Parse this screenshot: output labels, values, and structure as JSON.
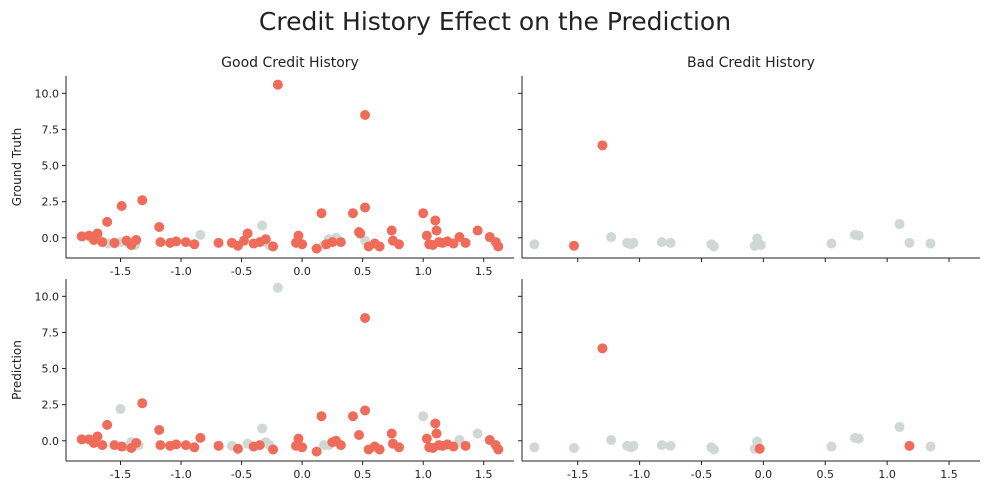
{
  "figure": {
    "title": "Credit History Effect on the Prediction",
    "colors": {
      "primary": "#f06c5a",
      "secondary": "#d0d8d4"
    }
  },
  "chart_data": [
    {
      "type": "scatter",
      "title": "Good Credit History",
      "ylabel": "Ground Truth",
      "xlim": [
        -1.95,
        1.75
      ],
      "ylim": [
        -1.4,
        11.2
      ],
      "xticks": [
        "-1.5",
        "-1.0",
        "-0.5",
        "0.0",
        "0.5",
        "1.0",
        "1.5"
      ],
      "yticks": [
        "0.0",
        "2.5",
        "5.0",
        "7.5",
        "10.0"
      ],
      "points": [
        [
          -1.81,
          0.08,
          "s"
        ],
        [
          -1.76,
          0.08,
          "s"
        ],
        [
          -1.68,
          -0.1,
          "s"
        ],
        [
          -1.6,
          -0.4,
          "s"
        ],
        [
          -1.55,
          -0.4,
          "s"
        ],
        [
          -1.5,
          -0.3,
          "s"
        ],
        [
          -1.43,
          -0.4,
          "s"
        ],
        [
          -1.38,
          -0.5,
          "s"
        ],
        [
          -0.27,
          -0.5,
          "s"
        ],
        [
          -0.05,
          -0.3,
          "s"
        ],
        [
          -0.84,
          0.2,
          "s"
        ],
        [
          -0.33,
          0.85,
          "s"
        ],
        [
          -0.3,
          -0.3,
          "s"
        ],
        [
          0.18,
          -0.5,
          "s"
        ],
        [
          0.22,
          -0.1,
          "s"
        ],
        [
          0.28,
          0.0,
          "s"
        ],
        [
          0.52,
          -0.2,
          "s"
        ],
        [
          -1.82,
          0.1,
          "p"
        ],
        [
          -1.76,
          0.15,
          "p"
        ],
        [
          -1.72,
          -0.15,
          "p"
        ],
        [
          -1.69,
          0.3,
          "p"
        ],
        [
          -1.65,
          -0.3,
          "p"
        ],
        [
          -1.61,
          1.1,
          "p"
        ],
        [
          -1.55,
          -0.35,
          "p"
        ],
        [
          -1.49,
          2.2,
          "p"
        ],
        [
          -1.45,
          -0.2,
          "p"
        ],
        [
          -1.41,
          -0.5,
          "p"
        ],
        [
          -1.37,
          -0.15,
          "p"
        ],
        [
          -1.32,
          2.6,
          "p"
        ],
        [
          -1.18,
          0.75,
          "p"
        ],
        [
          -1.17,
          -0.3,
          "p"
        ],
        [
          -1.09,
          -0.35,
          "p"
        ],
        [
          -1.04,
          -0.25,
          "p"
        ],
        [
          -0.96,
          -0.3,
          "p"
        ],
        [
          -0.89,
          -0.45,
          "p"
        ],
        [
          -0.69,
          -0.35,
          "p"
        ],
        [
          -0.58,
          -0.35,
          "p"
        ],
        [
          -0.53,
          -0.55,
          "p"
        ],
        [
          -0.48,
          -0.2,
          "p"
        ],
        [
          -0.45,
          0.3,
          "p"
        ],
        [
          -0.4,
          -0.4,
          "p"
        ],
        [
          -0.35,
          -0.3,
          "p"
        ],
        [
          -0.3,
          -0.1,
          "p"
        ],
        [
          -0.24,
          -0.6,
          "p"
        ],
        [
          -0.2,
          10.6,
          "p"
        ],
        [
          -0.05,
          -0.35,
          "p"
        ],
        [
          -0.03,
          0.15,
          "p"
        ],
        [
          0.0,
          -0.45,
          "p"
        ],
        [
          0.12,
          -0.75,
          "p"
        ],
        [
          0.16,
          1.7,
          "p"
        ],
        [
          0.2,
          -0.45,
          "p"
        ],
        [
          0.25,
          -0.3,
          "p"
        ],
        [
          0.32,
          -0.3,
          "p"
        ],
        [
          0.42,
          1.7,
          "p"
        ],
        [
          0.47,
          0.4,
          "p"
        ],
        [
          0.48,
          0.3,
          "p"
        ],
        [
          0.52,
          2.1,
          "p"
        ],
        [
          0.52,
          8.5,
          "p"
        ],
        [
          0.55,
          -0.6,
          "p"
        ],
        [
          0.6,
          -0.4,
          "p"
        ],
        [
          0.64,
          -0.6,
          "p"
        ],
        [
          0.74,
          0.5,
          "p"
        ],
        [
          0.75,
          -0.2,
          "p"
        ],
        [
          0.8,
          -0.45,
          "p"
        ],
        [
          1.0,
          1.7,
          "p"
        ],
        [
          1.03,
          0.15,
          "p"
        ],
        [
          1.05,
          -0.45,
          "p"
        ],
        [
          1.08,
          -0.5,
          "p"
        ],
        [
          1.1,
          1.2,
          "p"
        ],
        [
          1.11,
          0.5,
          "p"
        ],
        [
          1.13,
          -0.3,
          "p"
        ],
        [
          1.16,
          -0.35,
          "p"
        ],
        [
          1.2,
          -0.25,
          "p"
        ],
        [
          1.25,
          -0.4,
          "p"
        ],
        [
          1.3,
          0.05,
          "p"
        ],
        [
          1.35,
          -0.35,
          "p"
        ],
        [
          1.45,
          0.5,
          "p"
        ],
        [
          1.55,
          0.05,
          "p"
        ],
        [
          1.6,
          -0.3,
          "p"
        ],
        [
          1.62,
          -0.6,
          "p"
        ]
      ]
    },
    {
      "type": "scatter",
      "title": "Bad Credit History",
      "ylabel": "",
      "xlim": [
        -1.95,
        1.75
      ],
      "ylim": [
        -1.4,
        11.2
      ],
      "xticks": [],
      "yticks": [
        "",
        "",
        "",
        "",
        ""
      ],
      "points": [
        [
          -1.85,
          -0.45,
          "s"
        ],
        [
          -1.23,
          0.05,
          "s"
        ],
        [
          -1.1,
          -0.35,
          "s"
        ],
        [
          -1.07,
          -0.45,
          "s"
        ],
        [
          -1.05,
          -0.35,
          "s"
        ],
        [
          -0.82,
          -0.3,
          "s"
        ],
        [
          -0.75,
          -0.35,
          "s"
        ],
        [
          -0.42,
          -0.45,
          "s"
        ],
        [
          -0.4,
          -0.6,
          "s"
        ],
        [
          -0.07,
          -0.55,
          "s"
        ],
        [
          -0.05,
          -0.05,
          "s"
        ],
        [
          -0.02,
          -0.5,
          "s"
        ],
        [
          0.55,
          -0.4,
          "s"
        ],
        [
          0.74,
          0.2,
          "s"
        ],
        [
          0.77,
          0.15,
          "s"
        ],
        [
          1.1,
          0.95,
          "s"
        ],
        [
          1.18,
          -0.35,
          "s"
        ],
        [
          1.35,
          -0.4,
          "s"
        ],
        [
          -1.53,
          -0.55,
          "p"
        ],
        [
          -1.3,
          6.4,
          "p"
        ]
      ]
    },
    {
      "type": "scatter",
      "title": "",
      "ylabel": "Prediction",
      "xlim": [
        -1.95,
        1.75
      ],
      "ylim": [
        -1.4,
        11.2
      ],
      "xticks": [
        "-1.5",
        "-1.0",
        "-0.5",
        "0.0",
        "0.5",
        "1.0",
        "1.5"
      ],
      "yticks": [
        "0.0",
        "2.5",
        "5.0",
        "7.5",
        "10.0"
      ],
      "points": [
        [
          -1.5,
          2.2,
          "s"
        ],
        [
          -1.45,
          -0.4,
          "s"
        ],
        [
          -1.35,
          -0.3,
          "s"
        ],
        [
          -1.41,
          -0.1,
          "s"
        ],
        [
          -0.33,
          0.85,
          "s"
        ],
        [
          -0.3,
          -0.1,
          "s"
        ],
        [
          -0.27,
          -0.3,
          "s"
        ],
        [
          -0.2,
          10.6,
          "s"
        ],
        [
          0.18,
          -0.3,
          "s"
        ],
        [
          0.22,
          -0.3,
          "s"
        ],
        [
          1.0,
          1.7,
          "s"
        ],
        [
          1.3,
          0.05,
          "s"
        ],
        [
          1.45,
          0.5,
          "s"
        ],
        [
          -0.45,
          -0.2,
          "s"
        ],
        [
          -0.58,
          -0.35,
          "s"
        ],
        [
          -1.82,
          0.1,
          "p"
        ],
        [
          -1.76,
          0.1,
          "p"
        ],
        [
          -1.72,
          -0.15,
          "p"
        ],
        [
          -1.69,
          0.3,
          "p"
        ],
        [
          -1.65,
          -0.3,
          "p"
        ],
        [
          -1.61,
          1.1,
          "p"
        ],
        [
          -1.55,
          -0.3,
          "p"
        ],
        [
          -1.49,
          -0.4,
          "p"
        ],
        [
          -1.41,
          -0.5,
          "p"
        ],
        [
          -1.37,
          -0.15,
          "p"
        ],
        [
          -1.32,
          2.6,
          "p"
        ],
        [
          -1.18,
          0.75,
          "p"
        ],
        [
          -1.17,
          -0.3,
          "p"
        ],
        [
          -1.09,
          -0.35,
          "p"
        ],
        [
          -1.04,
          -0.25,
          "p"
        ],
        [
          -0.96,
          -0.3,
          "p"
        ],
        [
          -0.84,
          0.2,
          "p"
        ],
        [
          -0.89,
          -0.45,
          "p"
        ],
        [
          -0.69,
          -0.35,
          "p"
        ],
        [
          -0.53,
          -0.55,
          "p"
        ],
        [
          -0.4,
          -0.4,
          "p"
        ],
        [
          -0.35,
          -0.3,
          "p"
        ],
        [
          -0.24,
          -0.6,
          "p"
        ],
        [
          -0.05,
          -0.35,
          "p"
        ],
        [
          -0.03,
          0.15,
          "p"
        ],
        [
          0.0,
          -0.45,
          "p"
        ],
        [
          0.12,
          -0.75,
          "p"
        ],
        [
          0.16,
          1.7,
          "p"
        ],
        [
          0.25,
          -0.1,
          "p"
        ],
        [
          0.28,
          0.0,
          "p"
        ],
        [
          0.32,
          -0.3,
          "p"
        ],
        [
          0.42,
          1.7,
          "p"
        ],
        [
          0.47,
          0.4,
          "p"
        ],
        [
          0.52,
          2.1,
          "p"
        ],
        [
          0.52,
          8.5,
          "p"
        ],
        [
          0.55,
          -0.6,
          "p"
        ],
        [
          0.6,
          -0.4,
          "p"
        ],
        [
          0.64,
          -0.6,
          "p"
        ],
        [
          0.74,
          0.5,
          "p"
        ],
        [
          0.75,
          -0.2,
          "p"
        ],
        [
          0.8,
          -0.45,
          "p"
        ],
        [
          1.03,
          0.15,
          "p"
        ],
        [
          1.05,
          -0.45,
          "p"
        ],
        [
          1.08,
          -0.5,
          "p"
        ],
        [
          1.1,
          1.2,
          "p"
        ],
        [
          1.11,
          0.5,
          "p"
        ],
        [
          1.13,
          -0.3,
          "p"
        ],
        [
          1.16,
          -0.35,
          "p"
        ],
        [
          1.2,
          -0.25,
          "p"
        ],
        [
          1.25,
          -0.4,
          "p"
        ],
        [
          1.35,
          -0.35,
          "p"
        ],
        [
          1.55,
          0.05,
          "p"
        ],
        [
          1.6,
          -0.3,
          "p"
        ],
        [
          1.62,
          -0.6,
          "p"
        ]
      ]
    },
    {
      "type": "scatter",
      "title": "",
      "ylabel": "",
      "xlim": [
        -1.95,
        1.75
      ],
      "ylim": [
        -1.4,
        11.2
      ],
      "xticks": [
        "-1.5",
        "-1.0",
        "-0.5",
        "0.0",
        "0.5",
        "1.0",
        "1.5"
      ],
      "yticks": [
        "",
        "",
        "",
        "",
        ""
      ],
      "points": [
        [
          -1.85,
          -0.45,
          "s"
        ],
        [
          -1.53,
          -0.5,
          "s"
        ],
        [
          -1.23,
          0.05,
          "s"
        ],
        [
          -1.1,
          -0.35,
          "s"
        ],
        [
          -1.07,
          -0.45,
          "s"
        ],
        [
          -1.05,
          -0.35,
          "s"
        ],
        [
          -0.82,
          -0.3,
          "s"
        ],
        [
          -0.75,
          -0.35,
          "s"
        ],
        [
          -0.42,
          -0.45,
          "s"
        ],
        [
          -0.4,
          -0.6,
          "s"
        ],
        [
          -0.07,
          -0.55,
          "s"
        ],
        [
          -0.05,
          -0.05,
          "s"
        ],
        [
          0.55,
          -0.4,
          "s"
        ],
        [
          0.74,
          0.2,
          "s"
        ],
        [
          0.77,
          0.15,
          "s"
        ],
        [
          1.1,
          0.95,
          "s"
        ],
        [
          1.35,
          -0.4,
          "s"
        ],
        [
          -1.3,
          6.4,
          "p"
        ],
        [
          -0.03,
          -0.55,
          "p"
        ],
        [
          1.18,
          -0.35,
          "p"
        ]
      ]
    }
  ]
}
